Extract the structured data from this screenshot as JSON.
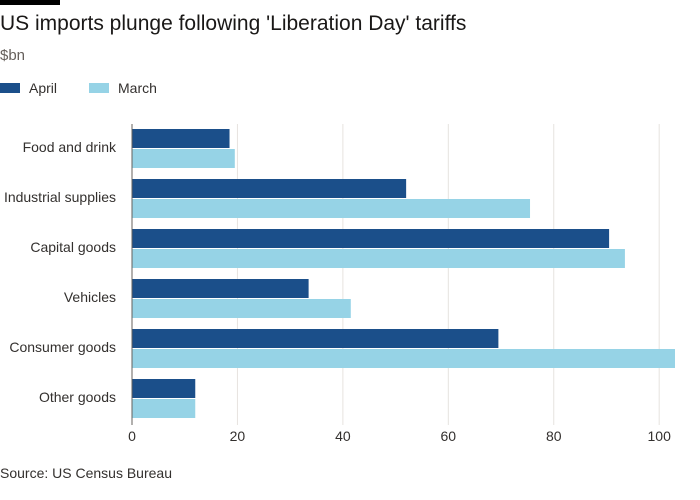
{
  "chart_data": {
    "type": "bar",
    "orientation": "horizontal",
    "title": "US imports plunge following 'Liberation Day' tariffs",
    "subtitle": "$bn",
    "categories": [
      "Food and drink",
      "Industrial supplies",
      "Capital goods",
      "Vehicles",
      "Consumer goods",
      "Other goods"
    ],
    "series": [
      {
        "name": "April",
        "color": "#1b4f8a",
        "values": [
          18.5,
          52,
          90.5,
          33.5,
          69.5,
          12
        ]
      },
      {
        "name": "March",
        "color": "#96d3e6",
        "values": [
          19.5,
          75.5,
          93.5,
          41.5,
          103,
          12
        ]
      }
    ],
    "xlim": [
      0,
      103
    ],
    "xticks": [
      0,
      20,
      40,
      60,
      80,
      100
    ],
    "grid": true,
    "legend": "top-left",
    "source": "Source: US Census Bureau"
  }
}
